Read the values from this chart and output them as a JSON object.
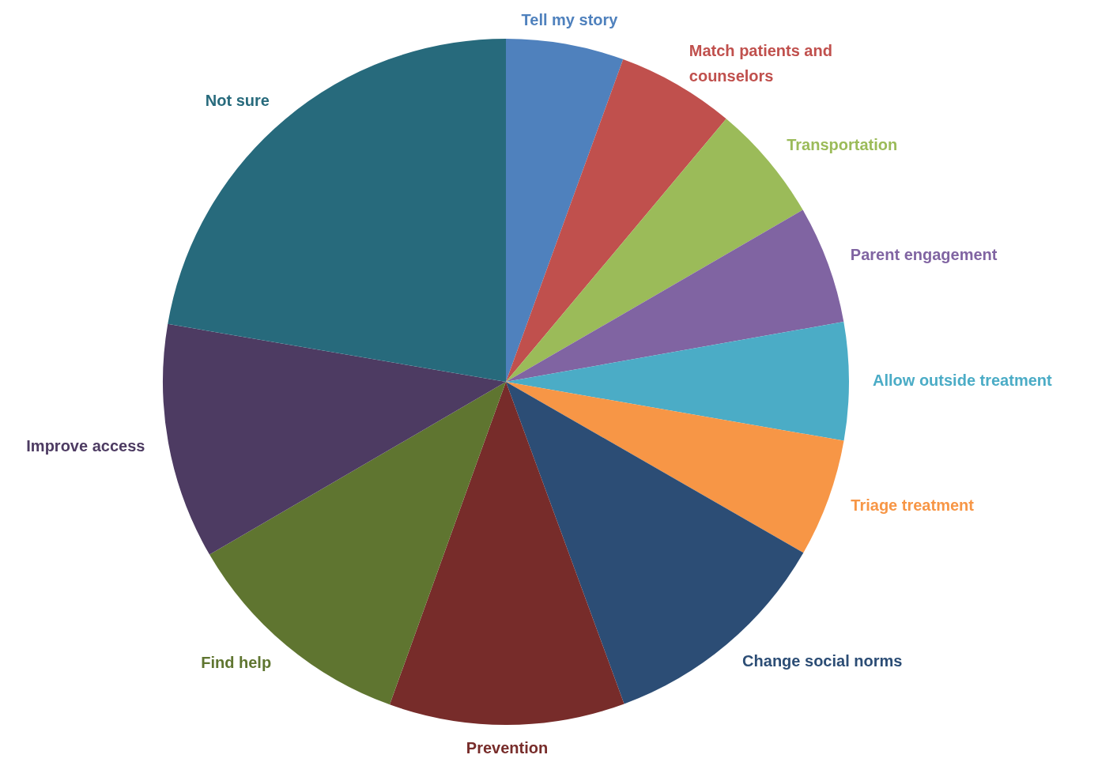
{
  "chart_data": {
    "type": "pie",
    "categories": [
      "Tell my story",
      "Match patients and counselors",
      "Transportation",
      "Parent engagement",
      "Allow outside treatment",
      "Triage treatment",
      "Change social norms",
      "Prevention",
      "Find help",
      "Improve access",
      "Not sure"
    ],
    "values": [
      5.55,
      5.55,
      5.55,
      5.55,
      5.55,
      5.55,
      11.1,
      11.1,
      11.1,
      11.1,
      22.3
    ],
    "colors": [
      "#4f81bd",
      "#c0504d",
      "#9bbb59",
      "#8064a2",
      "#4bacc6",
      "#f79646",
      "#2c4d75",
      "#772c2a",
      "#5f7530",
      "#4d3b62",
      "#276a7c"
    ],
    "legend": false
  }
}
